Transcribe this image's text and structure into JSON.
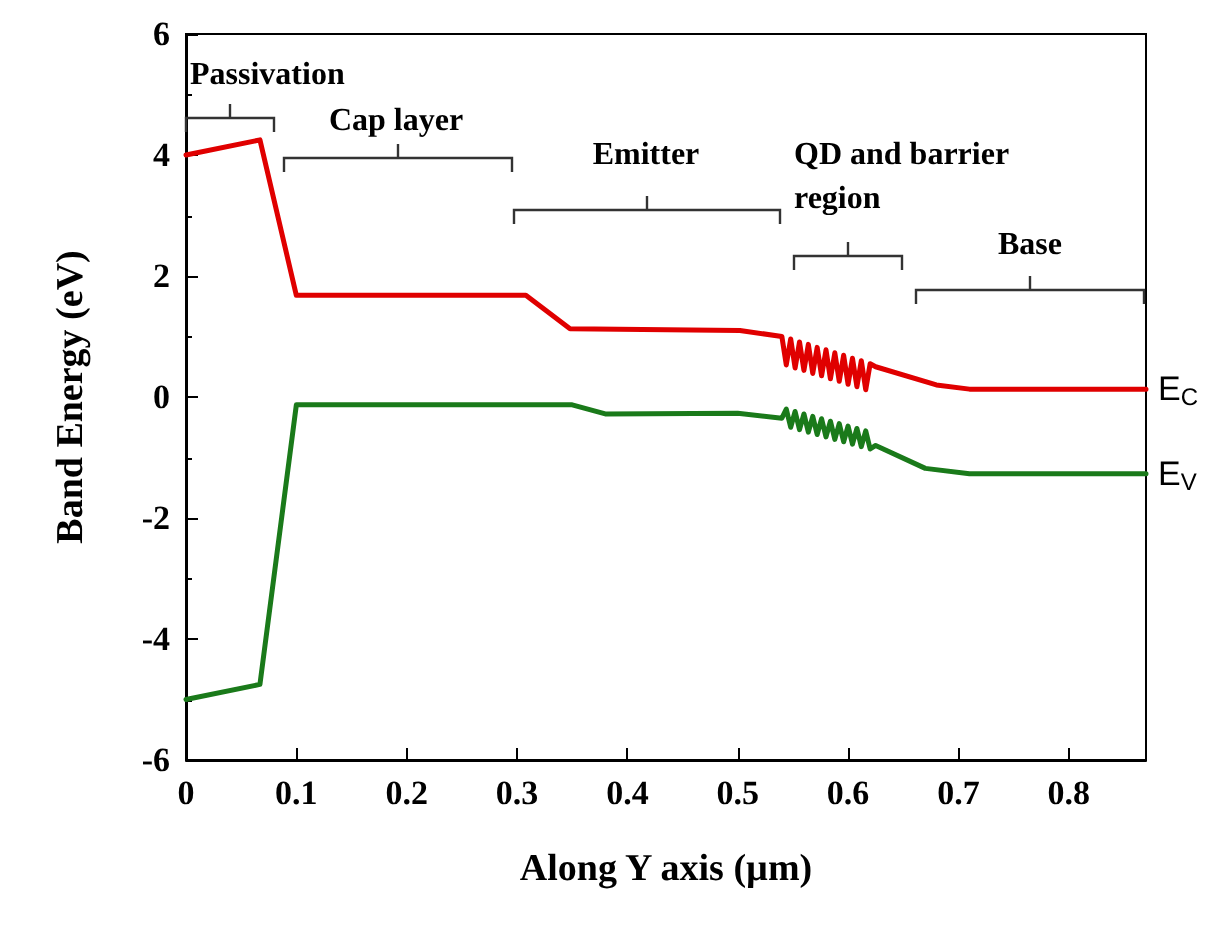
{
  "chart_data": {
    "type": "line",
    "xlabel": "Along Y axis (µm)",
    "ylabel": "Band Energy (eV)",
    "xlim": [
      0,
      0.87
    ],
    "xticks": [
      0,
      0.1,
      0.2,
      0.3,
      0.4,
      0.5,
      0.6,
      0.7,
      0.8
    ],
    "ylim": [
      -6,
      6
    ],
    "yticks": [
      -6,
      -4,
      -2,
      0,
      2,
      4,
      6
    ],
    "grid": false,
    "legend": false,
    "marker": "none",
    "line_style": "solid",
    "annotations": [
      "Passivation",
      "Cap layer",
      "Emitter",
      "QD and barrier region",
      "Base"
    ],
    "series": [
      {
        "name": "E$_{C}$",
        "color": "#e00000",
        "x": [
          0,
          0.067,
          0.1,
          0.308,
          0.348,
          0.502,
          0.54,
          0.544,
          0.548,
          0.552,
          0.556,
          0.56,
          0.564,
          0.568,
          0.572,
          0.576,
          0.58,
          0.584,
          0.588,
          0.592,
          0.596,
          0.6,
          0.604,
          0.608,
          0.612,
          0.616,
          0.62,
          0.625,
          0.68,
          0.71,
          0.87
        ],
        "values": [
          4.0,
          4.25,
          1.68,
          1.68,
          1.13,
          1.1,
          1.0,
          0.53,
          0.96,
          0.48,
          0.91,
          0.44,
          0.87,
          0.39,
          0.82,
          0.35,
          0.78,
          0.3,
          0.73,
          0.26,
          0.69,
          0.21,
          0.64,
          0.17,
          0.6,
          0.12,
          0.55,
          0.5,
          0.2,
          0.13,
          0.13
        ]
      },
      {
        "name": "E$_{V}$",
        "color": "#1a7a1a",
        "x": [
          0,
          0.067,
          0.1,
          0.35,
          0.38,
          0.5,
          0.54,
          0.544,
          0.548,
          0.552,
          0.556,
          0.56,
          0.564,
          0.568,
          0.572,
          0.576,
          0.58,
          0.584,
          0.588,
          0.592,
          0.596,
          0.6,
          0.604,
          0.608,
          0.612,
          0.616,
          0.62,
          0.625,
          0.67,
          0.71,
          0.87
        ],
        "values": [
          -5.0,
          -4.75,
          -0.13,
          -0.13,
          -0.28,
          -0.27,
          -0.35,
          -0.2,
          -0.5,
          -0.24,
          -0.54,
          -0.28,
          -0.58,
          -0.32,
          -0.62,
          -0.36,
          -0.66,
          -0.4,
          -0.7,
          -0.44,
          -0.74,
          -0.48,
          -0.78,
          -0.52,
          -0.82,
          -0.56,
          -0.86,
          -0.8,
          -1.18,
          -1.27,
          -1.27
        ]
      }
    ]
  }
}
